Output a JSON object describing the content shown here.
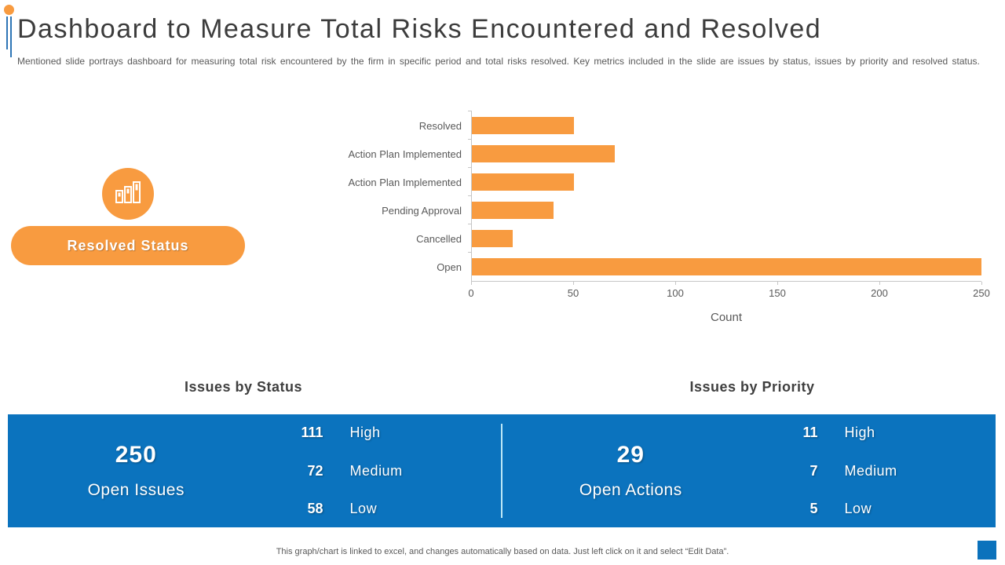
{
  "slide": {
    "title": "Dashboard to Measure Total Risks Encountered and Resolved",
    "subtitle": "Mentioned slide portrays dashboard for measuring total risk encountered by the firm in specific period and total risks resolved.  Key metrics included in the slide are issues by status, issues by priority and resolved status.",
    "footer_note": "This graph/chart is linked to excel, and changes automatically based on data. Just left click on it and select “Edit Data”."
  },
  "resolved_status": {
    "button_label": "Resolved Status",
    "icon": "bar-chart-icon"
  },
  "chart_data": {
    "type": "bar",
    "orientation": "horizontal",
    "categories": [
      "Resolved",
      "Action Plan Implemented",
      "Action Plan Implemented",
      "Pending Approval",
      "Cancelled",
      "Open"
    ],
    "values": [
      50,
      70,
      50,
      40,
      20,
      250
    ],
    "xlabel": "Count",
    "ylabel": "",
    "xlim": [
      0,
      250
    ],
    "x_ticks": [
      0,
      50,
      100,
      150,
      200,
      250
    ],
    "grid": false,
    "legend": false,
    "bar_color": "#F89B40"
  },
  "sections": {
    "status": {
      "heading": "Issues by Status",
      "headline_value": "250",
      "headline_label": "Open Issues",
      "stats": [
        {
          "value": "111",
          "label": "High"
        },
        {
          "value": "72",
          "label": "Medium"
        },
        {
          "value": "58",
          "label": "Low"
        }
      ]
    },
    "priority": {
      "heading": "Issues by Priority",
      "headline_value": "29",
      "headline_label": "Open Actions",
      "stats": [
        {
          "value": "11",
          "label": "High"
        },
        {
          "value": "7",
          "label": "Medium"
        },
        {
          "value": "5",
          "label": "Low"
        }
      ]
    }
  },
  "colors": {
    "accent_orange": "#F89B40",
    "accent_blue": "#0B73BE",
    "title_text": "#3C3C3C",
    "body_text": "#595959",
    "axis_line": "#C6C6C6"
  }
}
